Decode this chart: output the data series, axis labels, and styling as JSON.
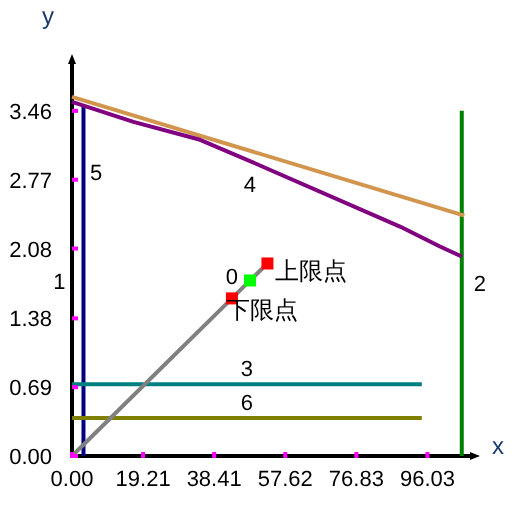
{
  "chart_data": {
    "type": "line",
    "xlabel": "x",
    "ylabel": "y",
    "xlim": [
      0,
      108.6
    ],
    "ylim": [
      0,
      3.97
    ],
    "xticks": [
      {
        "value": 0,
        "label": "0.00"
      },
      19.21,
      38.41,
      57.62,
      76.83,
      96.03
    ],
    "yticks": [
      {
        "value": 0,
        "label": "0.00"
      },
      0.69,
      1.38,
      2.08,
      2.77,
      3.46
    ],
    "grid": false,
    "series": [
      {
        "name": "1",
        "color": "#000080",
        "x": [
          3.1,
          3.1
        ],
        "values": [
          0,
          3.5
        ]
      },
      {
        "name": "2",
        "color": "#008000",
        "x": [
          105.3,
          105.3
        ],
        "values": [
          0,
          3.46
        ]
      },
      {
        "name": "3",
        "color": "#008080",
        "x": [
          0,
          94.5
        ],
        "values": [
          0.72,
          0.72
        ]
      },
      {
        "name": "6",
        "color": "#808000",
        "x": [
          0,
          94.5
        ],
        "values": [
          0.38,
          0.38
        ]
      },
      {
        "color": "#d2954e",
        "x": [
          0,
          106
        ],
        "values": [
          3.6,
          2.41
        ]
      },
      {
        "name": "4",
        "color": "#800080",
        "x": [
          0,
          16.6,
          34.6,
          49.7,
          88.6,
          99.4,
          105.3
        ],
        "values": [
          3.55,
          3.35,
          3.17,
          2.93,
          2.3,
          2.1,
          2.0
        ]
      },
      {
        "name": "0",
        "color": "#808080",
        "x": [
          0,
          43.2,
          48.1,
          52.8
        ],
        "values": [
          0,
          1.58,
          1.76,
          1.93
        ]
      },
      {
        "type": "scatter",
        "marker": "square",
        "x": [
          43.2,
          48.1,
          52.8
        ],
        "values": [
          1.58,
          1.76,
          1.93
        ],
        "colors": [
          "#ff0000",
          "#00ff00",
          "#ff0000"
        ]
      }
    ],
    "annotations": [
      {
        "text": "上限点",
        "x": 52.8,
        "y": 1.93
      },
      {
        "text": "下限点",
        "x": 43.2,
        "y": 1.58
      },
      "5"
    ]
  }
}
